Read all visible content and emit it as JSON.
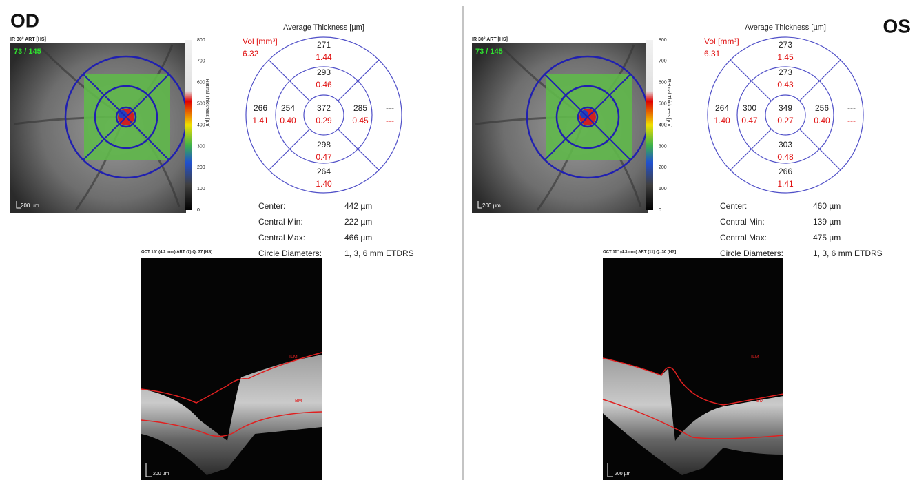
{
  "panels": [
    {
      "eye": "OD",
      "fundus": {
        "header": "IR 30° ART [HS]",
        "counter": "73 / 145",
        "scale": "200 µm"
      },
      "colorbar": {
        "title": "Retinal Thickness [µm]",
        "ticks": [
          "800",
          "700",
          "600",
          "500",
          "400",
          "300",
          "200",
          "100",
          "0"
        ]
      },
      "etdrs": {
        "title": "Average Thickness [µm]",
        "vol_label": "Vol [mm³]",
        "vol": "6.32",
        "sectors": [
          {
            "thickness": "372",
            "volume": "0.29"
          },
          {
            "thickness": "293",
            "volume": "0.46"
          },
          {
            "thickness": "254",
            "volume": "0.40"
          },
          {
            "thickness": "285",
            "volume": "0.45"
          },
          {
            "thickness": "298",
            "volume": "0.47"
          },
          {
            "thickness": "271",
            "volume": "1.44"
          },
          {
            "thickness": "266",
            "volume": "1.41"
          },
          {
            "thickness": "---",
            "volume": "---"
          },
          {
            "thickness": "264",
            "volume": "1.40"
          }
        ]
      },
      "stats": [
        {
          "label": "Center:",
          "value": "442 µm"
        },
        {
          "label": "Central Min:",
          "value": "222 µm"
        },
        {
          "label": "Central Max:",
          "value": "466 µm"
        },
        {
          "label": "Circle Diameters:",
          "value": "1, 3, 6 mm ETDRS"
        }
      ],
      "oct": {
        "header": "OCT 15° (4.2 mm) ART (7) Q: 37 [HS]",
        "ilm": "ILM",
        "bm": "BM",
        "scale": "200 µm"
      }
    },
    {
      "eye": "OS",
      "fundus": {
        "header": "IR 30° ART [HS]",
        "counter": "73 / 145",
        "scale": "200 µm"
      },
      "colorbar": {
        "title": "Retinal Thickness [µm]",
        "ticks": [
          "800",
          "700",
          "600",
          "500",
          "400",
          "300",
          "200",
          "100",
          "0"
        ]
      },
      "etdrs": {
        "title": "Average Thickness [µm]",
        "vol_label": "Vol [mm³]",
        "vol": "6.31",
        "sectors": [
          {
            "thickness": "349",
            "volume": "0.27"
          },
          {
            "thickness": "273",
            "volume": "0.43"
          },
          {
            "thickness": "300",
            "volume": "0.47"
          },
          {
            "thickness": "256",
            "volume": "0.40"
          },
          {
            "thickness": "303",
            "volume": "0.48"
          },
          {
            "thickness": "273",
            "volume": "1.45"
          },
          {
            "thickness": "264",
            "volume": "1.40"
          },
          {
            "thickness": "---",
            "volume": "---"
          },
          {
            "thickness": "266",
            "volume": "1.41"
          }
        ]
      },
      "stats": [
        {
          "label": "Center:",
          "value": "460 µm"
        },
        {
          "label": "Central Min:",
          "value": "139 µm"
        },
        {
          "label": "Central Max:",
          "value": "475 µm"
        },
        {
          "label": "Circle Diameters:",
          "value": "1, 3, 6 mm ETDRS"
        }
      ],
      "oct": {
        "header": "OCT 15° (4.3 mm) ART (11) Q: 30 [HS]",
        "ilm": "ILM",
        "bm": "BM",
        "scale": "200 µm"
      }
    }
  ]
}
